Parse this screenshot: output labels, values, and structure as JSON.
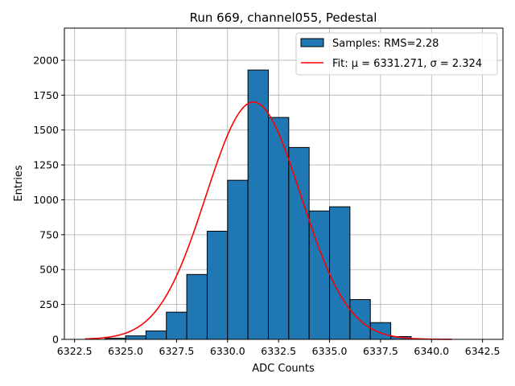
{
  "chart_data": {
    "type": "bar",
    "title": "Run 669, channel055, Pedestal",
    "xlabel": "ADC Counts",
    "ylabel": "Entries",
    "xlim": [
      6322.0,
      6343.5
    ],
    "ylim": [
      0,
      2230
    ],
    "grid": true,
    "legend_position": "top-right",
    "x_ticks": [
      6322.5,
      6325.0,
      6327.5,
      6330.0,
      6332.5,
      6335.0,
      6337.5,
      6340.0,
      6342.5
    ],
    "x_tick_labels": [
      "6322.5",
      "6325.0",
      "6327.5",
      "6330.0",
      "6332.5",
      "6335.0",
      "6337.5",
      "6340.0",
      "6342.5"
    ],
    "y_ticks": [
      0,
      250,
      500,
      750,
      1000,
      1250,
      1500,
      1750,
      2000
    ],
    "y_tick_labels": [
      "0",
      "250",
      "500",
      "750",
      "1000",
      "1250",
      "1500",
      "1750",
      "2000"
    ],
    "bin_edges": [
      6324,
      6325,
      6326,
      6327,
      6328,
      6329,
      6330,
      6331,
      6332,
      6333,
      6334,
      6335,
      6336,
      6337,
      6338,
      6339
    ],
    "series": [
      {
        "name": "Samples: RMS=2.28",
        "type": "histogram",
        "color": "#1f77b4",
        "edge_color": "#000000",
        "values": [
          8,
          25,
          60,
          195,
          465,
          775,
          1140,
          1930,
          1590,
          1375,
          920,
          950,
          285,
          120,
          20
        ]
      },
      {
        "name": "Fit: μ = 6331.271, σ = 2.324",
        "type": "line",
        "color": "#ff0000",
        "mu": 6331.271,
        "sigma": 2.324,
        "amplitude": 1700,
        "x_range": [
          6323,
          6341
        ]
      }
    ]
  }
}
